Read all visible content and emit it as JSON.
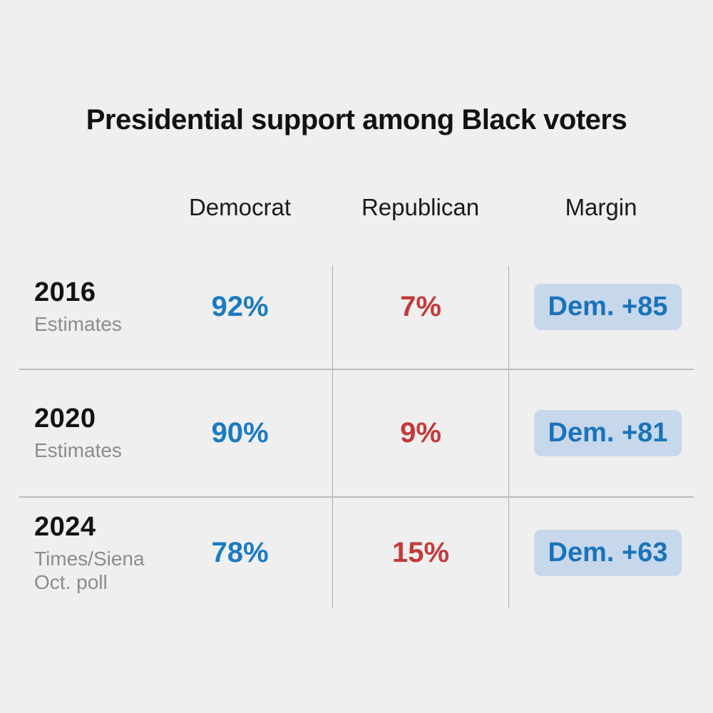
{
  "title": "Presidential support among Black voters",
  "colors": {
    "background": "#efefef",
    "title_text": "#121212",
    "header_text": "#1a1a1a",
    "year_text": "#121212",
    "sublabel": "#8c8c8c",
    "democrat": "#1b7bc2",
    "republican": "#c43a3a",
    "badge_bg": "#c7d8ec",
    "badge_text": "#1a73ba",
    "hline": "#bdbdbd",
    "vline": "#ababab"
  },
  "table": {
    "columns": [
      "Democrat",
      "Republican",
      "Margin"
    ],
    "rows": [
      {
        "year": "2016",
        "source": "Estimates",
        "democrat": "92%",
        "republican": "7%",
        "margin": "Dem. +85"
      },
      {
        "year": "2020",
        "source": "Estimates",
        "democrat": "90%",
        "republican": "9%",
        "margin": "Dem. +81"
      },
      {
        "year": "2024",
        "source": "Times/Siena\nOct. poll",
        "democrat": "78%",
        "republican": "15%",
        "margin": "Dem. +63"
      }
    ]
  },
  "chart_data": {
    "type": "table",
    "title": "Presidential support among Black voters",
    "columns": [
      "Democrat",
      "Republican",
      "Margin"
    ],
    "rows": [
      {
        "label": "2016",
        "source": "Estimates",
        "democrat_pct": 92,
        "republican_pct": 7,
        "margin": "Dem. +85",
        "margin_value": 85
      },
      {
        "label": "2020",
        "source": "Estimates",
        "democrat_pct": 90,
        "republican_pct": 9,
        "margin": "Dem. +81",
        "margin_value": 81
      },
      {
        "label": "2024",
        "source": "Times/Siena Oct. poll",
        "democrat_pct": 78,
        "republican_pct": 15,
        "margin": "Dem. +63",
        "margin_value": 63
      }
    ]
  }
}
